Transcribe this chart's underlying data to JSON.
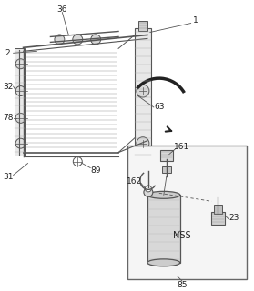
{
  "background_color": "#ffffff",
  "fig_width": 2.79,
  "fig_height": 3.2,
  "dpi": 100,
  "line_color": "#555555",
  "label_color": "#222222",
  "label_fontsize": 6.5
}
